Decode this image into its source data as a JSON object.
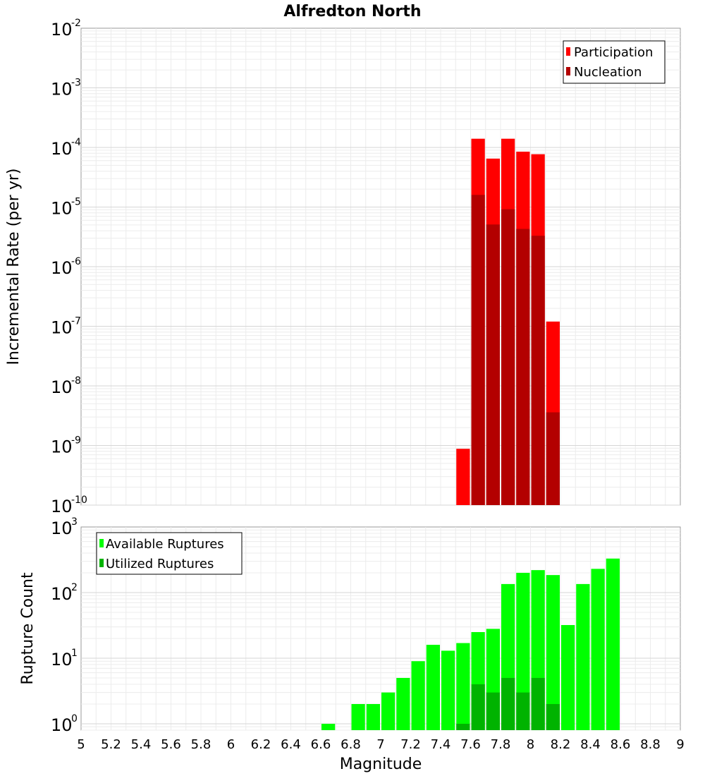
{
  "chart_data": [
    {
      "type": "bar",
      "title": "Alfredton North",
      "ylabel": "Incremental Rate (per yr)",
      "xlabel": "",
      "yscale": "log",
      "ylim": [
        1e-10,
        0.01
      ],
      "xlim": [
        5,
        9
      ],
      "bin_width": 0.1,
      "ytick_bases": [
        "10",
        "10",
        "10",
        "10",
        "10",
        "10",
        "10",
        "10",
        "10"
      ],
      "ytick_exponents": [
        "-10",
        "-9",
        "-8",
        "-7",
        "-6",
        "-5",
        "-4",
        "-3",
        "-2"
      ],
      "ytick_values": [
        1e-10,
        1e-09,
        1e-08,
        1e-07,
        1e-06,
        1e-05,
        0.0001,
        0.001,
        0.01
      ],
      "legend": {
        "position": "top-right",
        "entries": [
          "Participation",
          "Nucleation"
        ]
      },
      "series": [
        {
          "name": "Participation",
          "color": "#ff0000",
          "x": [
            7.55,
            7.65,
            7.75,
            7.85,
            7.95,
            8.05,
            8.15
          ],
          "values": [
            8.8e-10,
            0.00014,
            6.5e-05,
            0.00014,
            8.5e-05,
            7.7e-05,
            1.2e-07
          ]
        },
        {
          "name": "Nucleation",
          "color": "#b30000",
          "x": [
            7.55,
            7.65,
            7.75,
            7.85,
            7.95,
            8.05,
            8.15
          ],
          "values": [
            1e-10,
            1.6e-05,
            5.1e-06,
            9.2e-06,
            4.3e-06,
            3.3e-06,
            3.6e-09
          ]
        }
      ]
    },
    {
      "type": "bar",
      "title": "",
      "ylabel": "Rupture Count",
      "xlabel": "Magnitude",
      "yscale": "log",
      "ylim": [
        0.8,
        1000
      ],
      "xlim": [
        5,
        9
      ],
      "bin_width": 0.1,
      "ytick_bases": [
        "10",
        "10",
        "10",
        "10"
      ],
      "ytick_exponents": [
        "0",
        "1",
        "2",
        "3"
      ],
      "ytick_values": [
        1,
        10,
        100,
        1000
      ],
      "xtick_labels": [
        "5",
        "5.2",
        "5.4",
        "5.6",
        "5.8",
        "6",
        "6.2",
        "6.4",
        "6.6",
        "6.8",
        "7",
        "7.2",
        "7.4",
        "7.6",
        "7.8",
        "8",
        "8.2",
        "8.4",
        "8.6",
        "8.8",
        "9"
      ],
      "legend": {
        "position": "top-left",
        "entries": [
          "Available Ruptures",
          "Utilized Ruptures"
        ]
      },
      "series": [
        {
          "name": "Available Ruptures",
          "color": "#00ff00",
          "x": [
            6.65,
            6.85,
            6.95,
            7.05,
            7.15,
            7.25,
            7.35,
            7.45,
            7.55,
            7.65,
            7.75,
            7.85,
            7.95,
            8.05,
            8.15,
            8.25,
            8.35,
            8.45,
            8.55
          ],
          "values": [
            1,
            2,
            2,
            3,
            5,
            9,
            16,
            13,
            17,
            25,
            28,
            135,
            200,
            220,
            185,
            32,
            135,
            230,
            330
          ]
        },
        {
          "name": "Utilized Ruptures",
          "color": "#00b300",
          "x": [
            7.55,
            7.65,
            7.75,
            7.85,
            7.95,
            8.05,
            8.15
          ],
          "values": [
            1,
            4,
            3,
            5,
            3,
            5,
            2
          ]
        }
      ]
    }
  ]
}
